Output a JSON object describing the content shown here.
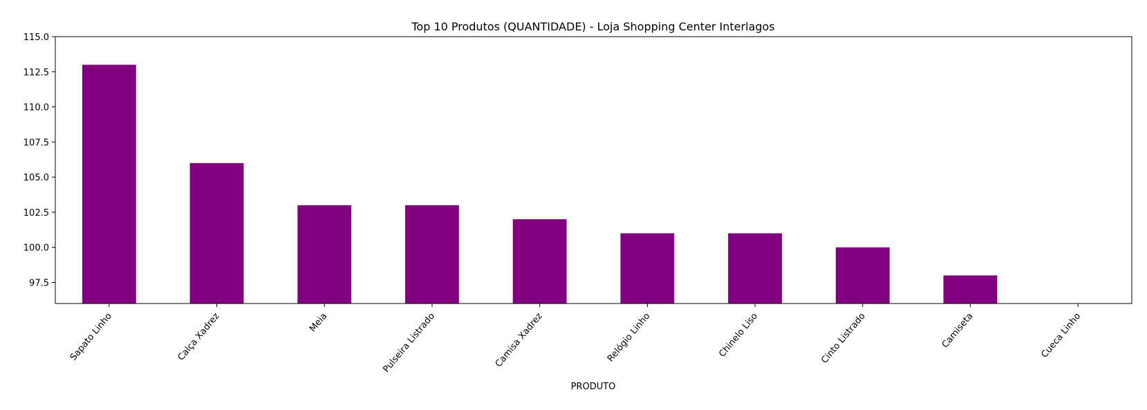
{
  "chart_data": {
    "type": "bar",
    "title": "Top 10 Produtos (QUANTIDADE) - Loja Shopping Center Interlagos",
    "xlabel": "PRODUTO",
    "ylabel": "",
    "categories": [
      "Sapato Linho",
      "Calça Xadrez",
      "Meia",
      "Pulseira Listrado",
      "Camisa Xadrez",
      "Relógio Linho",
      "Chinelo Liso",
      "Cinto Listrado",
      "Camiseta",
      "Cueca Linho"
    ],
    "values": [
      113,
      106,
      103,
      103,
      102,
      101,
      101,
      100,
      98,
      96
    ],
    "ylim": [
      96,
      115
    ],
    "yticks": [
      "97.5",
      "100.0",
      "102.5",
      "105.0",
      "107.5",
      "110.0",
      "112.5",
      "115.0"
    ],
    "bar_color": "#800080",
    "grid": false,
    "legend": "none"
  }
}
